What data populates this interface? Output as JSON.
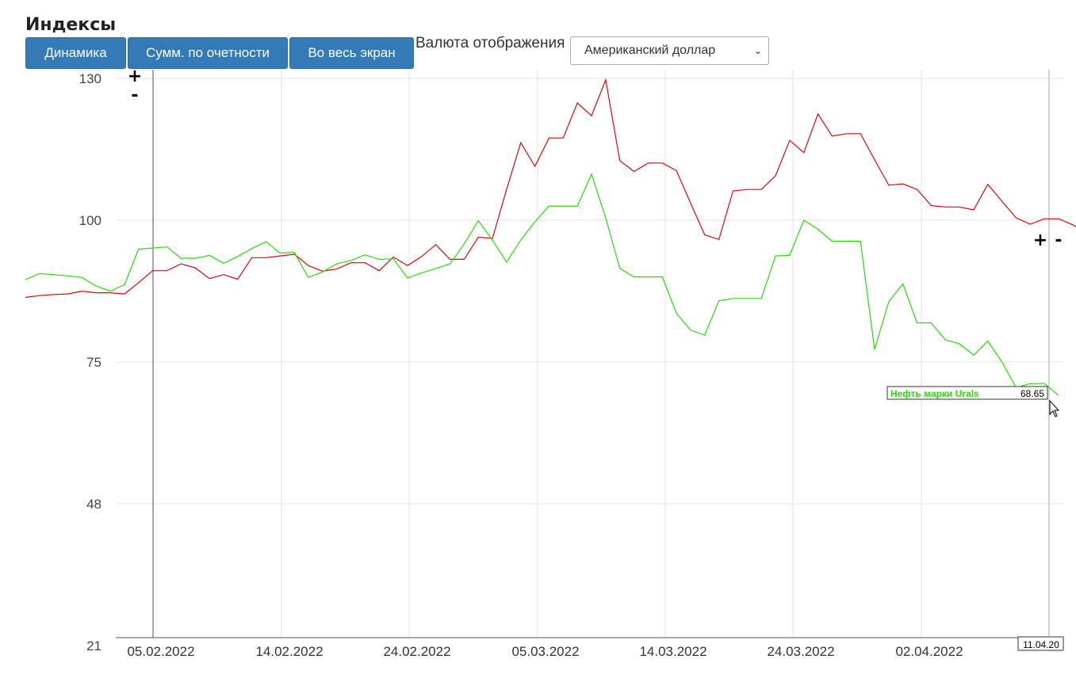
{
  "page": {
    "title": "Индексы",
    "buttons": [
      "Динамика",
      "Сумм. по очетности",
      "Во весь экран"
    ],
    "currency_label": "Валюта отображения",
    "currency_selected": "Американский доллар"
  },
  "chart_data": {
    "type": "line",
    "y_ticks": [
      "130",
      "100",
      "75",
      "48",
      "21"
    ],
    "x_ticks": [
      "05.02.2022",
      "14.02.2022",
      "24.02.2022",
      "05.03.2022",
      "14.03.2022",
      "24.03.2022",
      "02.04.2022"
    ],
    "ylim": [
      21,
      130
    ],
    "grid": true,
    "zoom_plus": "+",
    "zoom_minus": "-",
    "tooltip": {
      "series": "Нефть марки Urals",
      "value": "68.65",
      "date": "11.04.20"
    },
    "series": [
      {
        "name": "",
        "color": "#e8000b",
        "values": [
          [
            0,
            86.4
          ],
          [
            1,
            86.7
          ],
          [
            2,
            86.9
          ],
          [
            3,
            87.0
          ],
          [
            4,
            87.5
          ],
          [
            5,
            87.2
          ],
          [
            6,
            87.2
          ],
          [
            7,
            87.0
          ],
          [
            8,
            89.0
          ],
          [
            9,
            91.1
          ],
          [
            10,
            91.1
          ],
          [
            11,
            92.3
          ],
          [
            12,
            91.6
          ],
          [
            13,
            89.7
          ],
          [
            14,
            90.4
          ],
          [
            15,
            89.6
          ],
          [
            16,
            93.4
          ],
          [
            17,
            93.4
          ],
          [
            18,
            93.7
          ],
          [
            19,
            94.0
          ],
          [
            20,
            92.0
          ],
          [
            21,
            91.0
          ],
          [
            22,
            91.4
          ],
          [
            23,
            92.5
          ],
          [
            24,
            92.5
          ],
          [
            25,
            91.1
          ],
          [
            26,
            93.5
          ],
          [
            27,
            92.0
          ],
          [
            28,
            93.6
          ],
          [
            29,
            95.7
          ],
          [
            30,
            93.1
          ],
          [
            31,
            93.1
          ],
          [
            32,
            97.0
          ],
          [
            33,
            96.8
          ],
          [
            34,
            106.5
          ],
          [
            35,
            116.4
          ],
          [
            36,
            111.4
          ],
          [
            37,
            117.4
          ],
          [
            38,
            117.4
          ],
          [
            39,
            124.8
          ],
          [
            40,
            122.1
          ],
          [
            41,
            129.7
          ],
          [
            42,
            112.6
          ],
          [
            43,
            110.3
          ],
          [
            44,
            112.1
          ],
          [
            45,
            112.1
          ],
          [
            46,
            110.5
          ],
          [
            47,
            103.6
          ],
          [
            48,
            97.4
          ],
          [
            49,
            96.6
          ],
          [
            50,
            106.2
          ],
          [
            51,
            106.5
          ],
          [
            52,
            106.5
          ],
          [
            53,
            109.4
          ],
          [
            54,
            116.9
          ],
          [
            55,
            114.3
          ],
          [
            56,
            122.5
          ],
          [
            57,
            117.8
          ],
          [
            58,
            118.3
          ],
          [
            59,
            118.3
          ],
          [
            60,
            112.8
          ],
          [
            61,
            107.4
          ],
          [
            62,
            107.7
          ],
          [
            63,
            106.5
          ],
          [
            64,
            103.1
          ],
          [
            65,
            102.8
          ],
          [
            66,
            102.8
          ],
          [
            67,
            102.2
          ],
          [
            68,
            107.6
          ],
          [
            69,
            104.0
          ],
          [
            70,
            100.5
          ],
          [
            71,
            99.3
          ],
          [
            72,
            100.3
          ],
          [
            73,
            100.3
          ],
          [
            74,
            99.2
          ],
          [
            75,
            97.6
          ]
        ]
      },
      {
        "name": "Нефть марки Urals",
        "color": "#22e000",
        "values": [
          [
            0,
            89.5
          ],
          [
            1,
            90.6
          ],
          [
            2,
            90.4
          ],
          [
            3,
            90.2
          ],
          [
            4,
            89.9
          ],
          [
            5,
            88.4
          ],
          [
            6,
            87.5
          ],
          [
            7,
            88.6
          ],
          [
            8,
            94.9
          ],
          [
            9,
            95.1
          ],
          [
            10,
            95.3
          ],
          [
            11,
            93.3
          ],
          [
            12,
            93.3
          ],
          [
            13,
            93.8
          ],
          [
            14,
            92.4
          ],
          [
            15,
            93.6
          ],
          [
            16,
            95.0
          ],
          [
            17,
            96.2
          ],
          [
            18,
            94.2
          ],
          [
            19,
            94.3
          ],
          [
            20,
            89.9
          ],
          [
            21,
            90.9
          ],
          [
            22,
            92.3
          ],
          [
            23,
            92.9
          ],
          [
            24,
            93.9
          ],
          [
            25,
            93.1
          ],
          [
            26,
            93.2
          ],
          [
            27,
            89.8
          ],
          [
            28,
            90.7
          ],
          [
            29,
            91.5
          ],
          [
            30,
            92.3
          ],
          [
            31,
            95.8
          ],
          [
            32,
            99.9
          ],
          [
            33,
            96.5
          ],
          [
            34,
            92.6
          ],
          [
            35,
            96.5
          ],
          [
            36,
            99.7
          ],
          [
            37,
            103.0
          ],
          [
            38,
            103.0
          ],
          [
            39,
            103.0
          ],
          [
            40,
            109.7
          ],
          [
            41,
            100.5
          ],
          [
            42,
            91.5
          ],
          [
            43,
            90.0
          ],
          [
            44,
            90.0
          ],
          [
            45,
            90.0
          ],
          [
            46,
            83.6
          ],
          [
            47,
            80.6
          ],
          [
            48,
            79.7
          ],
          [
            49,
            85.8
          ],
          [
            50,
            86.2
          ],
          [
            51,
            86.2
          ],
          [
            52,
            86.2
          ],
          [
            53,
            93.7
          ],
          [
            54,
            93.8
          ],
          [
            55,
            100.0
          ],
          [
            56,
            98.4
          ],
          [
            57,
            96.3
          ],
          [
            58,
            96.3
          ],
          [
            59,
            96.3
          ],
          [
            60,
            77.2
          ],
          [
            61,
            85.6
          ],
          [
            62,
            88.8
          ],
          [
            63,
            81.9
          ],
          [
            64,
            81.9
          ],
          [
            65,
            78.9
          ],
          [
            66,
            78.2
          ],
          [
            67,
            76.2
          ],
          [
            68,
            78.7
          ],
          [
            69,
            75.0
          ],
          [
            70,
            70.1
          ],
          [
            71,
            70.9
          ],
          [
            72,
            70.9
          ],
          [
            73,
            68.65
          ]
        ]
      }
    ]
  }
}
